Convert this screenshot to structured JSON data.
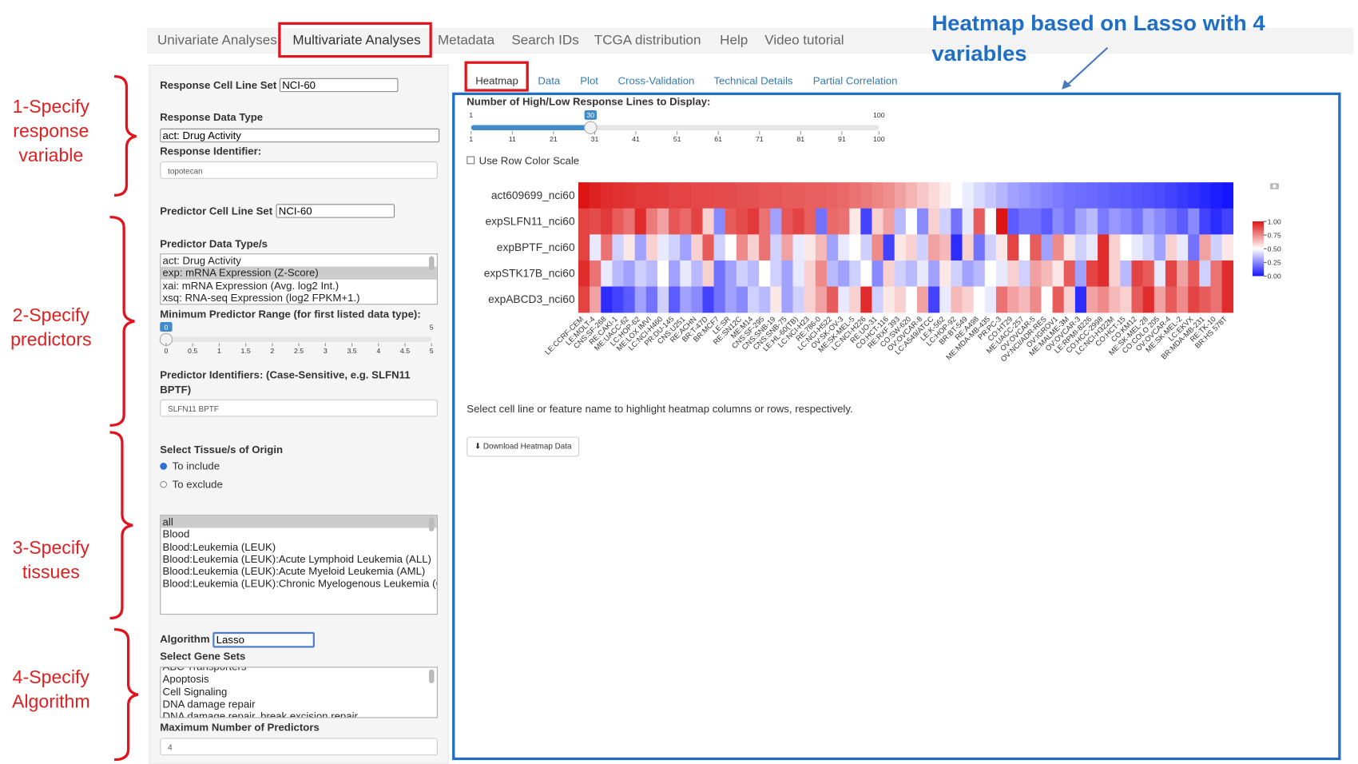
{
  "annotations": {
    "heading": "Heatmap based on Lasso with 4 variables",
    "steps": [
      "1-Specify response variable",
      "2-Specify predictors",
      "3-Specify tissues",
      "4-Specify Algorithm"
    ]
  },
  "nav_tabs": [
    "Univariate Analyses",
    "Multivariate Analyses",
    "Metadata",
    "Search IDs",
    "TCGA distribution",
    "Help",
    "Video tutorial"
  ],
  "sidebar": {
    "response_cell_line_set": {
      "label": "Response Cell Line Set",
      "value": "NCI-60"
    },
    "response_data_type": {
      "label": "Response Data Type",
      "value": "act: Drug Activity"
    },
    "response_identifier": {
      "label": "Response Identifier:",
      "value": "topotecan"
    },
    "predictor_cell_line_set": {
      "label": "Predictor Cell Line Set",
      "value": "NCI-60"
    },
    "predictor_data_types": {
      "label": "Predictor Data Type/s",
      "options": [
        {
          "text": "act: Drug Activity"
        },
        {
          "text": "exp: mRNA Expression (Z-Score)",
          "selected": true
        },
        {
          "text": "xai: mRNA Expression (Avg. log2 Int.)"
        },
        {
          "text": "xsq: RNA-seq Expression (log2 FPKM+1.)"
        }
      ]
    },
    "min_predictor_range": {
      "label": "Minimum Predictor Range (for first listed data type):",
      "min": 0,
      "max": 5,
      "value": 0,
      "ticks": [
        0,
        0.5,
        1,
        1.5,
        2,
        2.5,
        3,
        3.5,
        4,
        4.5,
        5
      ]
    },
    "predictor_identifiers": {
      "label": "Predictor Identifiers: (Case-Sensitive, e.g. SLFN11 BPTF)",
      "value": "SLFN11 BPTF"
    },
    "tissue_of_origin": {
      "label": "Select Tissue/s of Origin",
      "options": [
        {
          "text": "To include",
          "checked": true
        },
        {
          "text": "To exclude"
        }
      ]
    },
    "tissues": [
      {
        "text": "all",
        "selected": true
      },
      {
        "text": "Blood"
      },
      {
        "text": "Blood:Leukemia (LEUK)"
      },
      {
        "text": "Blood:Leukemia (LEUK):Acute Lymphoid Leukemia (ALL)"
      },
      {
        "text": "Blood:Leukemia (LEUK):Acute Myeloid Leukemia (AML)"
      },
      {
        "text": "Blood:Leukemia (LEUK):Chronic Myelogenous Leukemia (CML)"
      }
    ],
    "algorithm": {
      "label": "Algorithm",
      "value": "Lasso"
    },
    "gene_sets": {
      "label": "Select Gene Sets",
      "options": [
        "ABC Transporters",
        "Apoptosis",
        "Cell Signaling",
        "DNA damage repair",
        "DNA damage repair, break excision repair"
      ]
    },
    "max_predictors": {
      "label": "Maximum Number of Predictors",
      "value": 4
    }
  },
  "main": {
    "tabs": [
      "Heatmap",
      "Data",
      "Plot",
      "Cross-Validation",
      "Technical Details",
      "Partial Correlation"
    ],
    "slider": {
      "label": "Number of High/Low Response Lines to Display:",
      "min": 1,
      "max": 100,
      "value": 30,
      "ticks": [
        1,
        11,
        21,
        31,
        41,
        51,
        61,
        71,
        81,
        91,
        100
      ]
    },
    "checkbox": "Use Row Color Scale",
    "heatmap": {
      "rows": [
        "act609699_nci60",
        "expSLFN11_nci60",
        "expBPTF_nci60",
        "expSTK17B_nci60",
        "expABCD3_nci60"
      ],
      "columns": [
        "LE:CCRF-CEM",
        "LE:MOLT-4",
        "CNS:SF-268",
        "RE:CAKI-1",
        "ME:UACC-62",
        "LC:HOP-62",
        "ME:LOX IMVI",
        "LC:NCI-H460",
        "PR:DU-145",
        "CNS:U251",
        "RE:ACHN",
        "BR:T-47D",
        "BR:MCF7",
        "LE:SR",
        "RE:SN12C",
        "ME:M14",
        "CNS:SF-295",
        "CNS:SNB-19",
        "CNS:SNB-75",
        "LE:HL-60(TB)",
        "LC:NCI-H23",
        "RE:786-0",
        "LC:NCI-H522",
        "OV:SK-OV-3",
        "ME:SK-MEL-5",
        "LC:NCI-H226",
        "RE:UO-31",
        "CO:HCT-116",
        "RE:RXF 393",
        "CO:SW-620",
        "OV:OVCAR-8",
        "LC:A549/ATCC",
        "LE:K-562",
        "LC:HOP-92",
        "BR:BT-549",
        "RE:A498",
        "ME:MDA-MB-435",
        "PR:PC-3",
        "CO:HT29",
        "ME:UACC-257",
        "OV:OVCAR-5",
        "OV:NCI/ADR-RES",
        "OV:IGROV1",
        "ME:MALME-3M",
        "OV:OVCAR-3",
        "LE:RPMI-8226",
        "CO:HCC-2998",
        "LC:NCI-H322M",
        "CO:HCT-15",
        "CO:KM12",
        "ME:SK-MEL-28",
        "CO:COLO 205",
        "OV:OVCAR-4",
        "ME:SK-MEL-2",
        "LC:EKVX",
        "BR:MDA-MB-231",
        "RE:TK-10",
        "BR:HS 578T"
      ],
      "values": [
        [
          1.0,
          0.97,
          0.95,
          0.94,
          0.93,
          0.92,
          0.92,
          0.91,
          0.9,
          0.9,
          0.89,
          0.89,
          0.88,
          0.88,
          0.87,
          0.87,
          0.86,
          0.86,
          0.85,
          0.85,
          0.84,
          0.84,
          0.83,
          0.82,
          0.8,
          0.78,
          0.76,
          0.74,
          0.7,
          0.66,
          0.62,
          0.58,
          0.54,
          0.5,
          0.46,
          0.42,
          0.38,
          0.34,
          0.3,
          0.28,
          0.26,
          0.24,
          0.22,
          0.2,
          0.19,
          0.18,
          0.17,
          0.16,
          0.15,
          0.14,
          0.13,
          0.12,
          0.1,
          0.08,
          0.06,
          0.04,
          0.02,
          0.0
        ],
        [
          0.9,
          0.88,
          0.92,
          0.85,
          0.8,
          0.95,
          0.78,
          0.7,
          0.86,
          0.82,
          0.9,
          0.6,
          0.25,
          0.85,
          0.88,
          0.92,
          0.8,
          0.3,
          0.86,
          0.9,
          0.84,
          0.2,
          0.82,
          0.8,
          0.55,
          0.1,
          0.6,
          0.7,
          0.35,
          0.5,
          0.25,
          0.6,
          0.4,
          0.2,
          0.45,
          0.85,
          0.5,
          1.0,
          0.15,
          0.2,
          0.2,
          0.15,
          0.25,
          0.2,
          0.3,
          0.35,
          0.22,
          0.28,
          0.25,
          0.2,
          0.3,
          0.25,
          0.2,
          0.15,
          0.25,
          0.1,
          0.05,
          0.1
        ],
        [
          0.9,
          0.45,
          0.8,
          0.4,
          0.55,
          0.3,
          0.6,
          0.45,
          0.4,
          0.3,
          0.6,
          0.85,
          0.4,
          0.5,
          0.75,
          0.6,
          0.8,
          0.4,
          0.7,
          0.45,
          0.55,
          0.65,
          0.3,
          0.45,
          0.5,
          0.4,
          0.75,
          0.1,
          0.55,
          0.6,
          0.4,
          0.7,
          0.65,
          0.05,
          0.6,
          0.2,
          0.4,
          0.55,
          0.9,
          0.5,
          0.85,
          0.3,
          0.75,
          0.55,
          0.4,
          0.45,
          0.95,
          0.6,
          0.5,
          0.45,
          0.4,
          0.3,
          0.6,
          0.45,
          0.2,
          0.7,
          0.4,
          0.55
        ],
        [
          0.95,
          0.8,
          0.45,
          0.35,
          0.3,
          0.4,
          0.35,
          0.5,
          0.3,
          0.45,
          0.35,
          0.6,
          0.2,
          0.3,
          0.4,
          0.35,
          0.5,
          0.4,
          0.3,
          0.45,
          0.6,
          0.75,
          0.35,
          0.3,
          0.4,
          0.5,
          0.25,
          0.6,
          0.4,
          0.35,
          0.45,
          0.3,
          0.55,
          0.4,
          0.3,
          0.35,
          0.5,
          0.45,
          0.6,
          0.4,
          0.7,
          0.65,
          0.55,
          0.85,
          0.3,
          0.9,
          0.95,
          0.6,
          0.35,
          0.9,
          0.85,
          0.45,
          0.9,
          0.7,
          0.85,
          0.4,
          0.8,
          0.95
        ],
        [
          0.9,
          0.7,
          0.05,
          0.1,
          0.15,
          0.3,
          0.2,
          0.4,
          0.15,
          0.3,
          0.25,
          0.1,
          0.2,
          0.3,
          0.25,
          0.4,
          0.35,
          0.55,
          0.3,
          0.4,
          0.6,
          0.7,
          0.85,
          0.45,
          0.6,
          0.95,
          0.4,
          0.55,
          0.6,
          0.5,
          0.7,
          0.1,
          0.45,
          0.65,
          0.6,
          0.5,
          0.45,
          0.8,
          0.7,
          0.65,
          0.75,
          0.5,
          0.85,
          0.6,
          0.05,
          0.7,
          0.75,
          0.65,
          0.6,
          0.85,
          0.95,
          0.7,
          0.85,
          0.75,
          0.9,
          0.85,
          0.8,
          0.95
        ]
      ],
      "zlim": [
        0,
        1
      ],
      "colorbar_ticks": [
        {
          "value": 1,
          "label": "1.00"
        },
        {
          "value": 0.75,
          "label": "0.75"
        },
        {
          "value": 0.5,
          "label": "0.50"
        },
        {
          "value": 0.25,
          "label": "0.25"
        },
        {
          "value": 0,
          "label": "0.00"
        }
      ]
    },
    "hint": "Select cell line or feature name to highlight heatmap columns or rows, respectively.",
    "button": "Download Heatmap Data"
  }
}
